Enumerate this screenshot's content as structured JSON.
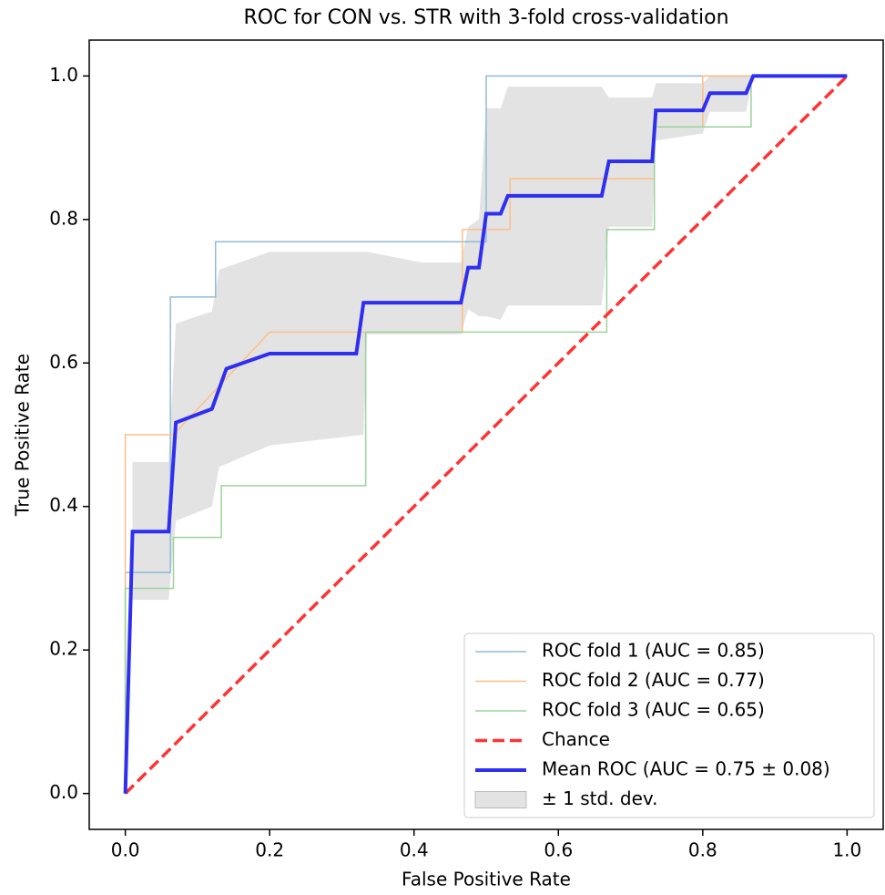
{
  "chart_data": {
    "type": "line",
    "title": "ROC for CON vs. STR with 3-fold cross-validation",
    "xlabel": "False Positive Rate",
    "ylabel": "True Positive Rate",
    "xlim": [
      -0.05,
      1.05
    ],
    "ylim": [
      -0.05,
      1.05
    ],
    "xticks": [
      {
        "value": 0,
        "label": "0.0"
      },
      0.2,
      0.4,
      0.6,
      0.8,
      {
        "value": 1,
        "label": "1.0"
      }
    ],
    "yticks": [
      {
        "value": 0,
        "label": "0.0"
      },
      0.2,
      0.4,
      0.6,
      0.8,
      {
        "value": 1,
        "label": "1.0"
      }
    ],
    "grid": false,
    "legend": "lower right",
    "series": [
      {
        "name": "ROC fold 1 (AUC = 0.85)",
        "color": "#8fbbd9",
        "linewidth": 1.5,
        "x": [
          0,
          0,
          0.0625,
          0.0625,
          0.125,
          0.125,
          0.5,
          0.5,
          1
        ],
        "values": [
          0,
          0.308,
          0.308,
          0.692,
          0.692,
          0.769,
          0.769,
          1.0,
          1.0
        ]
      },
      {
        "name": "ROC fold 2 (AUC = 0.77)",
        "color": "#ffbf86",
        "linewidth": 1.5,
        "x": [
          0,
          0,
          0.0667,
          0.2,
          0.467,
          0.467,
          0.533,
          0.533,
          0.733,
          0.733,
          0.8,
          0.8,
          1
        ],
        "values": [
          0,
          0.5,
          0.5,
          0.643,
          0.643,
          0.786,
          0.786,
          0.857,
          0.857,
          0.929,
          0.929,
          1.0,
          1.0
        ]
      },
      {
        "name": "ROC fold 3 (AUC = 0.65)",
        "color": "#9bd39b",
        "linewidth": 1.5,
        "x": [
          0,
          0,
          0.0667,
          0.0667,
          0.133,
          0.133,
          0.333,
          0.333,
          0.667,
          0.667,
          0.733,
          0.733,
          0.867,
          0.867,
          1
        ],
        "values": [
          0,
          0.286,
          0.286,
          0.357,
          0.357,
          0.429,
          0.429,
          0.643,
          0.643,
          0.786,
          0.786,
          0.929,
          0.929,
          1.0,
          1.0
        ]
      },
      {
        "name": "Chance",
        "color": "#ff3333",
        "linewidth": 3.5,
        "linestyle": "dashed",
        "x": [
          0,
          1
        ],
        "values": [
          0,
          1
        ]
      },
      {
        "name": "Mean ROC (AUC = 0.75 ± 0.08)",
        "color": "#2f2ff0",
        "linewidth": 4,
        "x": [
          0,
          0.01,
          0.06,
          0.07,
          0.12,
          0.14,
          0.2,
          0.32,
          0.33,
          0.465,
          0.475,
          0.49,
          0.5,
          0.52,
          0.53,
          0.66,
          0.67,
          0.73,
          0.735,
          0.8,
          0.81,
          0.86,
          0.87,
          1
        ],
        "values": [
          0,
          0.365,
          0.365,
          0.517,
          0.536,
          0.592,
          0.613,
          0.613,
          0.684,
          0.684,
          0.733,
          0.733,
          0.808,
          0.808,
          0.833,
          0.833,
          0.881,
          0.881,
          0.952,
          0.952,
          0.976,
          0.976,
          1.0,
          1.0
        ]
      }
    ],
    "band": {
      "name": "± 1 std. dev.",
      "color": "#e3e3e3",
      "x": [
        0.01,
        0.06,
        0.07,
        0.12,
        0.13,
        0.2,
        0.33,
        0.335,
        0.41,
        0.465,
        0.475,
        0.49,
        0.5,
        0.52,
        0.53,
        0.66,
        0.67,
        0.73,
        0.735,
        0.8,
        0.81,
        0.86,
        0.87,
        1
      ],
      "upper": [
        0.462,
        0.462,
        0.655,
        0.672,
        0.73,
        0.755,
        0.755,
        0.755,
        0.74,
        0.74,
        0.79,
        0.8,
        0.955,
        0.955,
        0.985,
        0.985,
        0.97,
        0.97,
        0.99,
        0.99,
        1.0,
        1.0,
        1.0,
        1.0
      ],
      "lower": [
        0.27,
        0.27,
        0.38,
        0.4,
        0.455,
        0.485,
        0.5,
        0.64,
        0.64,
        0.64,
        0.675,
        0.665,
        0.665,
        0.66,
        0.68,
        0.68,
        0.79,
        0.79,
        0.91,
        0.92,
        0.95,
        0.95,
        1.0,
        1.0
      ]
    }
  }
}
